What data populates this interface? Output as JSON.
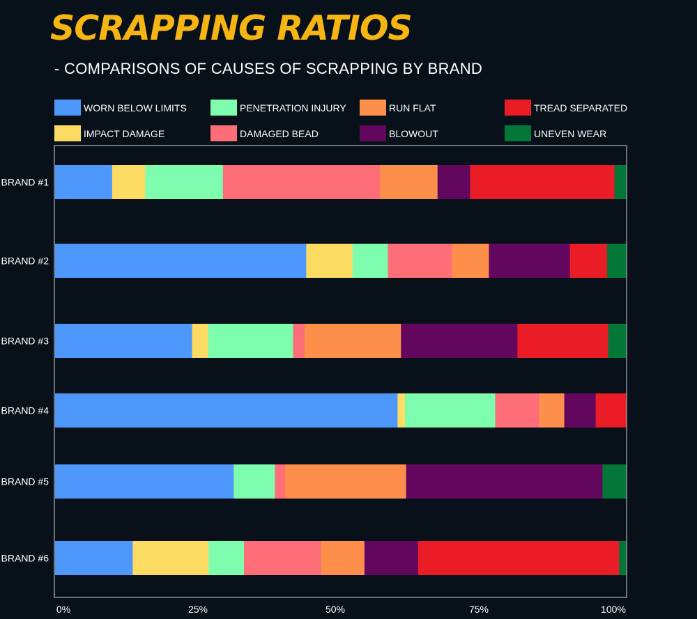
{
  "title": "SCRAPPING RATIOS",
  "subtitle": "- COMPARISONS OF CAUSES OF SCRAPPING BY BRAND",
  "chart_data": {
    "type": "bar",
    "orientation": "horizontal",
    "stacked": "percent",
    "categories": [
      "BRAND #1",
      "BRAND #2",
      "BRAND #3",
      "BRAND #4",
      "BRAND #5",
      "BRAND #6"
    ],
    "xticks": [
      "0%",
      "25%",
      "50%",
      "75%",
      "100%"
    ],
    "xlim": [
      0,
      100
    ],
    "legend_position": "top",
    "series": [
      {
        "name": "WORN BELOW LIMITS",
        "color": "#4f98fb",
        "values": [
          10,
          44,
          24,
          60,
          31.3,
          13.6
        ]
      },
      {
        "name": "IMPACT DAMAGE",
        "color": "#fcdb63",
        "values": [
          5.8,
          8.1,
          2.8,
          1.3,
          0,
          13.3
        ]
      },
      {
        "name": "PENETRATION INJURY",
        "color": "#7efdaf",
        "values": [
          13.6,
          6.2,
          14.9,
          15.8,
          7.2,
          6.2
        ]
      },
      {
        "name": "DAMAGED BEAD",
        "color": "#fd6e79",
        "values": [
          27.5,
          11.2,
          2,
          7.7,
          1.8,
          13.5
        ]
      },
      {
        "name": "RUN FLAT",
        "color": "#fd8f4a",
        "values": [
          10.1,
          6.5,
          16.9,
          4.4,
          21.2,
          7.6
        ]
      },
      {
        "name": "BLOWOUT",
        "color": "#62065e",
        "values": [
          5.7,
          14.2,
          20.4,
          5.5,
          34.4,
          9.4
        ]
      },
      {
        "name": "TREAD SEPARATED",
        "color": "#ea1c26",
        "values": [
          25.3,
          6.5,
          15.9,
          5.3,
          0,
          35.2
        ]
      },
      {
        "name": "UNEVEN WEAR",
        "color": "#037737",
        "values": [
          2,
          3.3,
          3.1,
          0,
          4.1,
          1.2
        ]
      }
    ]
  }
}
